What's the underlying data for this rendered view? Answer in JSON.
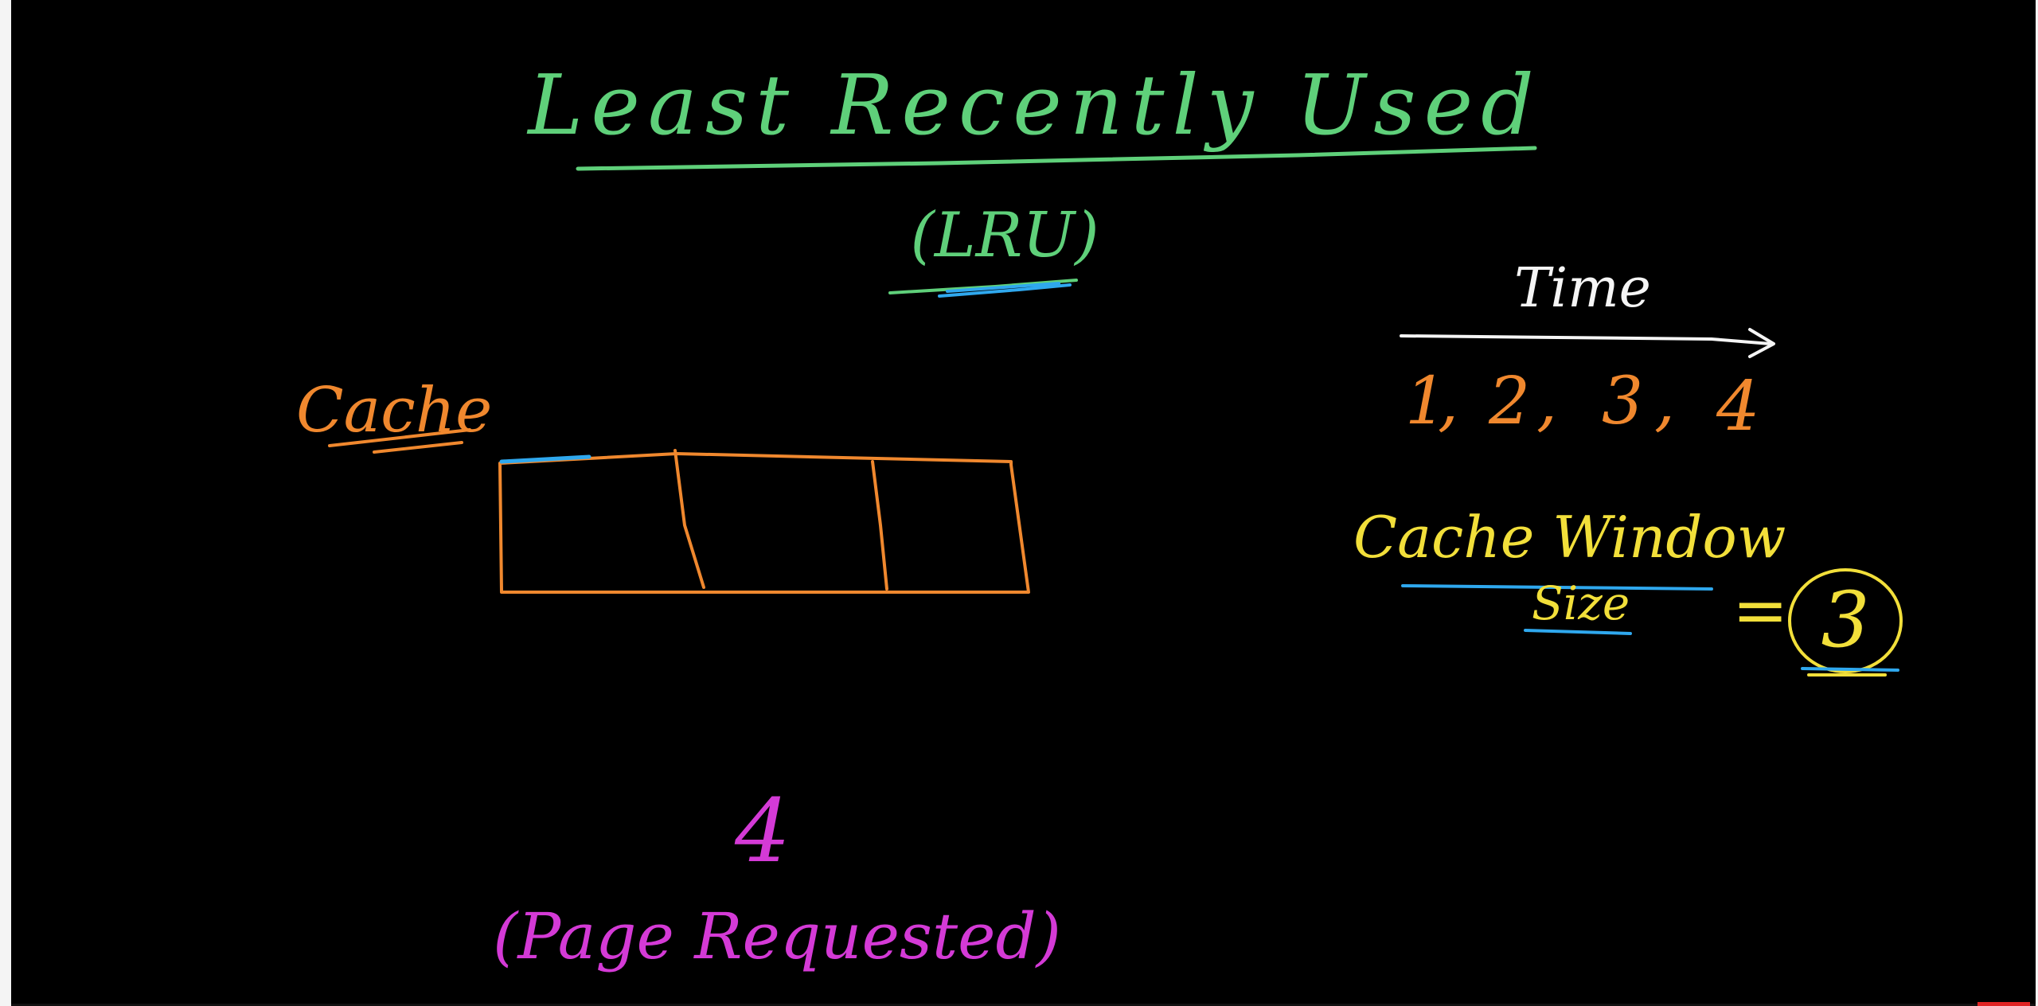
{
  "title": "Least Recently Used",
  "subtitle": "(LRU)",
  "cache_label": "Cache",
  "time_label": "Time",
  "sequence": [
    "1",
    "2",
    "3",
    "4"
  ],
  "window_label": "Cache Window",
  "size_label": "Size",
  "equals": "=",
  "window_size": "3",
  "requested_page": "4",
  "requested_caption": "(Page Requested)",
  "colors": {
    "green": "#5fd07a",
    "orange": "#f0882e",
    "yellow": "#f2df3a",
    "blue": "#2fa8ee",
    "magenta": "#d43ad6",
    "white": "#f5f5f5"
  },
  "cache_slots": 3
}
